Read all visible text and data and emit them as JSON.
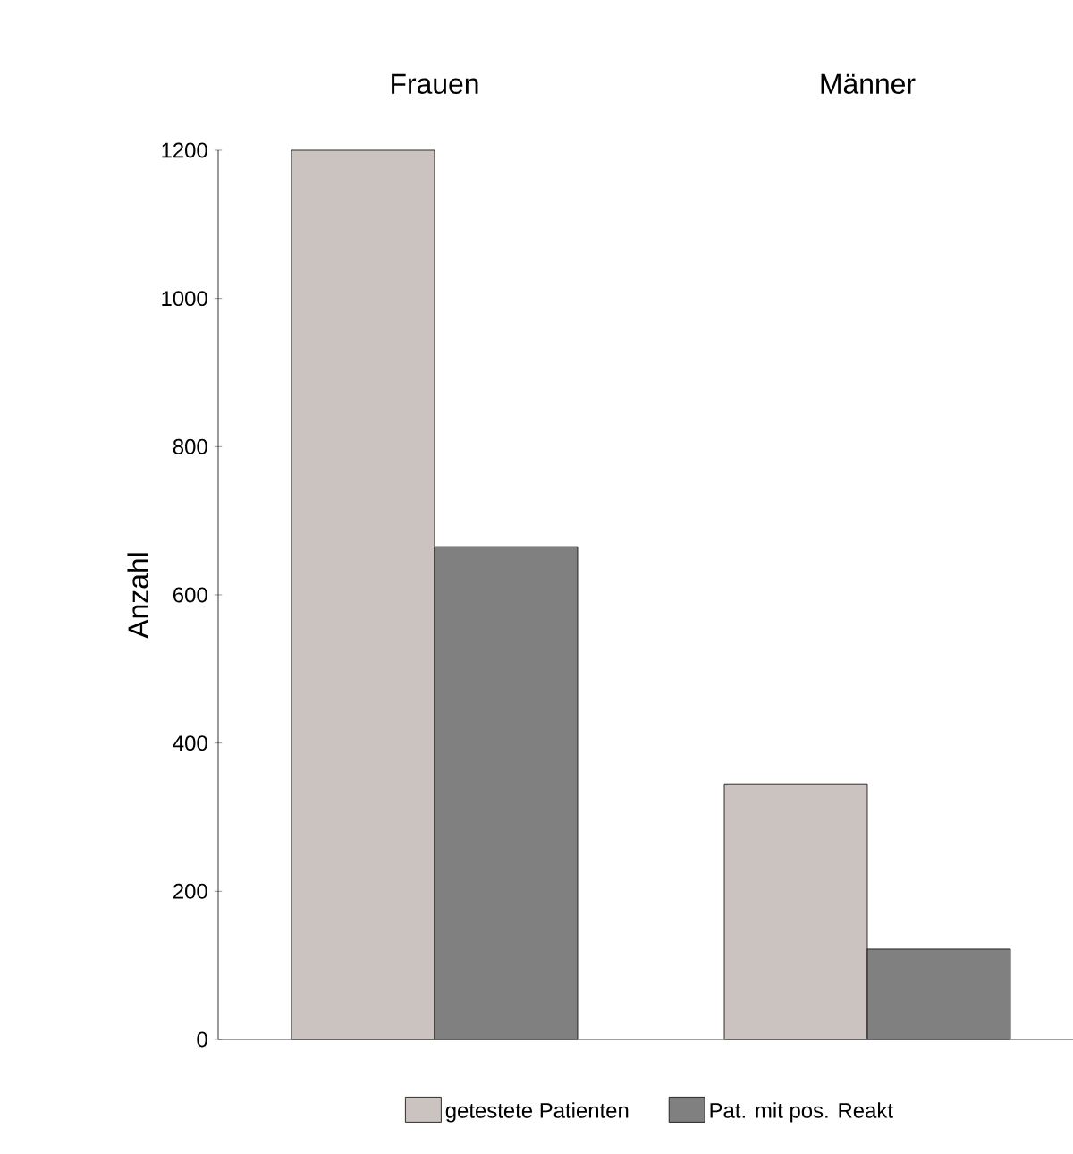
{
  "chart_data": {
    "type": "bar",
    "ylabel": "Anzahl",
    "categories": [
      "Frauen",
      "Männer"
    ],
    "series": [
      {
        "name": "getestete Patienten",
        "color": "#cbc3c0",
        "values": [
          1200,
          345
        ]
      },
      {
        "name": "Pat. mit pos. Reakt",
        "color": "#808080",
        "values": [
          665,
          122
        ]
      }
    ],
    "ylim": [
      0,
      1200
    ],
    "yticks": [
      0,
      200,
      400,
      600,
      800,
      1000,
      1200
    ],
    "grid": false,
    "legend": "bottom"
  }
}
